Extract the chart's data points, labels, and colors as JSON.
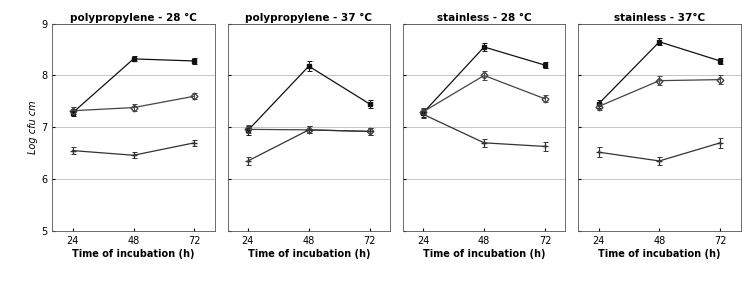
{
  "titles": [
    "polypropylene - 28 °C",
    "polypropylene - 37 °C",
    "stainless - 28 °C",
    "stainless - 37°C"
  ],
  "xlabel": "Time of incubation (h)",
  "ylabel": "Log cfu cm",
  "xticks": [
    24,
    48,
    72
  ],
  "ylim": [
    5,
    9
  ],
  "yticks": [
    5,
    6,
    7,
    8,
    9
  ],
  "series": {
    "BHI": {
      "data": [
        [
          [
            7.28,
            8.32,
            8.28
          ],
          [
            0.07,
            0.05,
            0.05
          ]
        ],
        [
          [
            6.94,
            8.18,
            7.45
          ],
          [
            0.08,
            0.1,
            0.08
          ]
        ],
        [
          [
            7.28,
            8.55,
            8.2
          ],
          [
            0.08,
            0.07,
            0.06
          ]
        ],
        [
          [
            7.45,
            8.65,
            8.28
          ],
          [
            0.07,
            0.07,
            0.06
          ]
        ]
      ]
    },
    "BHI-Glucose": {
      "data": [
        [
          [
            7.32,
            7.38,
            7.6
          ],
          [
            0.07,
            0.07,
            0.06
          ]
        ],
        [
          [
            6.96,
            6.95,
            6.92
          ],
          [
            0.08,
            0.07,
            0.07
          ]
        ],
        [
          [
            7.3,
            8.0,
            7.55
          ],
          [
            0.07,
            0.08,
            0.07
          ]
        ],
        [
          [
            7.4,
            7.9,
            7.92
          ],
          [
            0.07,
            0.09,
            0.09
          ]
        ]
      ]
    },
    "BHI-NaCl": {
      "data": [
        [
          [
            6.55,
            6.46,
            6.7
          ],
          [
            0.07,
            0.06,
            0.06
          ]
        ],
        [
          [
            6.35,
            6.95,
            6.92
          ],
          [
            0.07,
            0.07,
            0.06
          ]
        ],
        [
          [
            7.25,
            6.7,
            6.63
          ],
          [
            0.07,
            0.08,
            0.08
          ]
        ],
        [
          [
            6.52,
            6.35,
            6.7
          ],
          [
            0.1,
            0.07,
            0.1
          ]
        ]
      ]
    }
  },
  "background_color": "#ffffff",
  "grid_color": "#bbbbbb",
  "title_fontsize": 7.5,
  "axis_label_fontsize": 7,
  "tick_fontsize": 7
}
